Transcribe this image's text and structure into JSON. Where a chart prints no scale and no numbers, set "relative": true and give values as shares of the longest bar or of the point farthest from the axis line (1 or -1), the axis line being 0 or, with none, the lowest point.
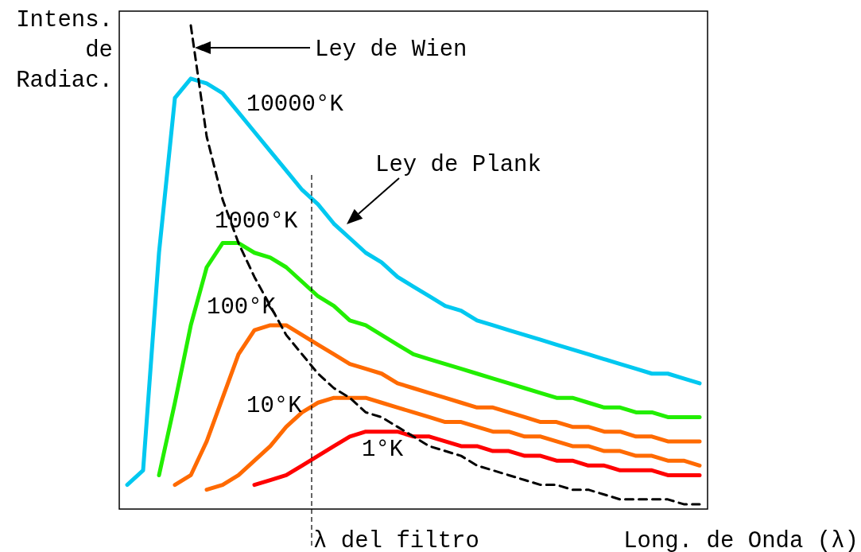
{
  "chart_data": {
    "type": "line",
    "relative": true,
    "xlabel": "Long. de Onda (λ)",
    "ylabel": "Intens. de Radiac.",
    "marker": "none",
    "categories": [
      null,
      null,
      null,
      null,
      null,
      null,
      null,
      null,
      null,
      null,
      null,
      null,
      null,
      null,
      null,
      null,
      null,
      null,
      null,
      null,
      null,
      null,
      null,
      null,
      null,
      null,
      null,
      null,
      null,
      null,
      null,
      null,
      null,
      null,
      null,
      null,
      null
    ],
    "annotations": [
      "Ley de Wien",
      "Ley de Plank",
      "λ del filtro"
    ],
    "series": [
      {
        "name": "10000°K",
        "color": "#00c8f0",
        "values": [
          0.05,
          0.08,
          0.53,
          0.85,
          0.89,
          0.88,
          0.86,
          0.82,
          0.78,
          0.74,
          0.7,
          0.66,
          0.63,
          0.59,
          0.56,
          0.53,
          0.51,
          0.48,
          0.46,
          0.44,
          0.42,
          0.41,
          0.39,
          0.38,
          0.37,
          0.36,
          0.35,
          0.34,
          0.33,
          0.32,
          0.31,
          0.3,
          0.29,
          0.28,
          0.28,
          0.27,
          0.26
        ]
      },
      {
        "name": "1000°K",
        "color": "#22ee00",
        "values": [
          null,
          null,
          0.07,
          0.22,
          0.38,
          0.5,
          0.55,
          0.55,
          0.53,
          0.52,
          0.5,
          0.47,
          0.44,
          0.42,
          0.39,
          0.38,
          0.36,
          0.34,
          0.32,
          0.31,
          0.3,
          0.29,
          0.28,
          0.27,
          0.26,
          0.25,
          0.24,
          0.23,
          0.23,
          0.22,
          0.21,
          0.21,
          0.2,
          0.2,
          0.19,
          0.19,
          0.19
        ]
      },
      {
        "name": "100°K",
        "color": "#ff6a00",
        "values": [
          null,
          null,
          null,
          0.05,
          0.07,
          0.14,
          0.23,
          0.32,
          0.37,
          0.38,
          0.38,
          0.36,
          0.34,
          0.32,
          0.3,
          0.29,
          0.28,
          0.26,
          0.25,
          0.24,
          0.23,
          0.22,
          0.21,
          0.21,
          0.2,
          0.19,
          0.18,
          0.18,
          0.17,
          0.17,
          0.16,
          0.16,
          0.15,
          0.15,
          0.14,
          0.14,
          0.14
        ]
      },
      {
        "name": "10°K",
        "color": "#ff6a00",
        "values": [
          null,
          null,
          null,
          null,
          null,
          0.04,
          0.05,
          0.07,
          0.1,
          0.13,
          0.17,
          0.2,
          0.22,
          0.23,
          0.23,
          0.23,
          0.22,
          0.21,
          0.2,
          0.19,
          0.18,
          0.18,
          0.17,
          0.16,
          0.16,
          0.15,
          0.15,
          0.14,
          0.13,
          0.13,
          0.12,
          0.12,
          0.11,
          0.11,
          0.1,
          0.1,
          0.09
        ]
      },
      {
        "name": "1°K",
        "color": "#ff0000",
        "values": [
          null,
          null,
          null,
          null,
          null,
          null,
          null,
          null,
          0.05,
          0.06,
          0.07,
          0.09,
          0.11,
          0.13,
          0.15,
          0.16,
          0.16,
          0.16,
          0.15,
          0.15,
          0.14,
          0.13,
          0.13,
          0.12,
          0.12,
          0.11,
          0.11,
          0.1,
          0.1,
          0.09,
          0.09,
          0.08,
          0.08,
          0.08,
          0.07,
          0.07,
          0.07
        ]
      },
      {
        "color": "#000000",
        "line_style": "dashed",
        "values": [
          null,
          null,
          null,
          null,
          1,
          0.77,
          0.64,
          0.55,
          0.48,
          0.42,
          0.36,
          0.32,
          0.28,
          0.25,
          0.23,
          0.2,
          0.19,
          0.17,
          0.15,
          0.13,
          0.12,
          0.11,
          0.09,
          0.08,
          0.07,
          0.06,
          0.05,
          0.05,
          0.04,
          0.04,
          0.03,
          0.02,
          0.02,
          0.02,
          0.02,
          0.01,
          0.01
        ]
      }
    ]
  }
}
